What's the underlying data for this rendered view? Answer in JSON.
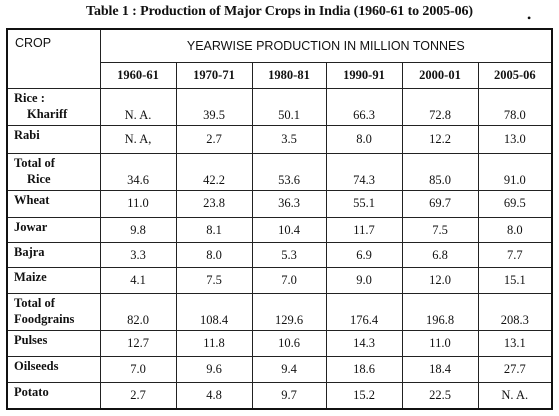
{
  "title": "Table 1 : Production of Major Crops in India (1960-61 to 2005-06)",
  "title_mark": "•",
  "header": {
    "crop_label": "CROP",
    "group_label": "YEARWISE PRODUCTION IN MILLION TONNES",
    "years": [
      "1960-61",
      "1970-71",
      "1980-81",
      "1990-91",
      "2000-01",
      "2005-06"
    ]
  },
  "rows": [
    {
      "line1": "Rice :",
      "line2": "Khariff",
      "indent": true,
      "values": [
        "N. A.",
        "39.5",
        "50.1",
        "66.3",
        "72.8",
        "78.0"
      ]
    },
    {
      "line1": "Rabi",
      "line2": "",
      "indent": false,
      "values": [
        "N. A,",
        "2.7",
        "3.5",
        "8.0",
        "12.2",
        "13.0"
      ]
    },
    {
      "line1": "Total of",
      "line2": "Rice",
      "indent": true,
      "values": [
        "34.6",
        "42.2",
        "53.6",
        "74.3",
        "85.0",
        "91.0"
      ]
    },
    {
      "line1": "Wheat",
      "line2": "",
      "indent": false,
      "values": [
        "11.0",
        "23.8",
        "36.3",
        "55.1",
        "69.7",
        "69.5"
      ]
    },
    {
      "line1": "Jowar",
      "line2": "",
      "indent": false,
      "values": [
        "9.8",
        "8.1",
        "10.4",
        "11.7",
        "7.5",
        "8.0"
      ]
    },
    {
      "line1": "Bajra",
      "line2": "",
      "indent": false,
      "values": [
        "3.3",
        "8.0",
        "5.3",
        "6.9",
        "6.8",
        "7.7"
      ]
    },
    {
      "line1": "Maize",
      "line2": "",
      "indent": false,
      "values": [
        "4.1",
        "7.5",
        "7.0",
        "9.0",
        "12.0",
        "15.1"
      ]
    },
    {
      "line1": "Total of",
      "line2": "Foodgrains",
      "indent": false,
      "values": [
        "82.0",
        "108.4",
        "129.6",
        "176.4",
        "196.8",
        "208.3"
      ]
    },
    {
      "line1": "Pulses",
      "line2": "",
      "indent": false,
      "values": [
        "12.7",
        "11.8",
        "10.6",
        "14.3",
        "11.0",
        "13.1"
      ]
    },
    {
      "line1": "Oilseeds",
      "line2": "",
      "indent": false,
      "values": [
        "7.0",
        "9.6",
        "9.4",
        "18.6",
        "18.4",
        "27.7"
      ]
    },
    {
      "line1": "Potato",
      "line2": "",
      "indent": false,
      "values": [
        "2.7",
        "4.8",
        "9.7",
        "15.2",
        "22.5",
        "N. A."
      ]
    }
  ]
}
